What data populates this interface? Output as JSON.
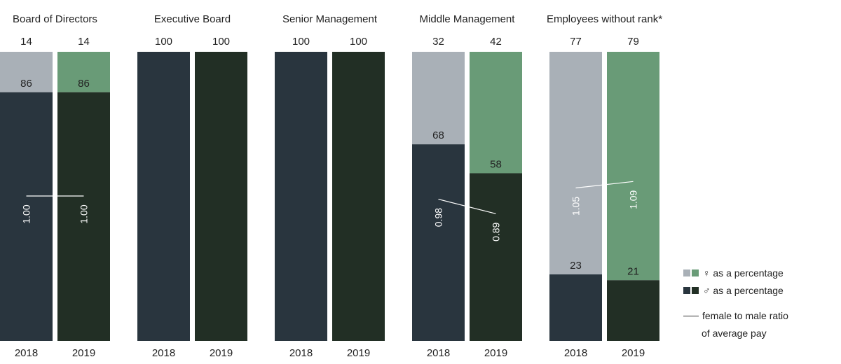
{
  "chart_data": {
    "type": "bar",
    "subtype": "stacked-100-percent",
    "groups": [
      {
        "name": "Board of Directors",
        "years": [
          {
            "year": "2018",
            "female": 14,
            "male": 86,
            "ratio": "1.00"
          },
          {
            "year": "2019",
            "female": 14,
            "male": 86,
            "ratio": "1.00"
          }
        ]
      },
      {
        "name": "Executive Board",
        "years": [
          {
            "year": "2018",
            "female": 0,
            "male": 100,
            "ratio": null
          },
          {
            "year": "2019",
            "female": 0,
            "male": 100,
            "ratio": null
          }
        ]
      },
      {
        "name": "Senior Management",
        "years": [
          {
            "year": "2018",
            "female": 0,
            "male": 100,
            "ratio": null
          },
          {
            "year": "2019",
            "female": 0,
            "male": 100,
            "ratio": null
          }
        ]
      },
      {
        "name": "Middle Management",
        "years": [
          {
            "year": "2018",
            "female": 32,
            "male": 68,
            "ratio": "0.98"
          },
          {
            "year": "2019",
            "female": 42,
            "male": 58,
            "ratio": "0.89"
          }
        ]
      },
      {
        "name": "Employees without rank*",
        "years": [
          {
            "year": "2018",
            "female": 77,
            "male": 23,
            "ratio": "1.05"
          },
          {
            "year": "2019",
            "female": 79,
            "male": 21,
            "ratio": "1.09"
          }
        ]
      }
    ],
    "ylim": [
      0,
      100
    ],
    "grid": false,
    "legend_position": "bottom-right",
    "colors": {
      "female_2018": "#a9b0b7",
      "male_2018": "#29353e",
      "female_2019": "#699b77",
      "male_2019": "#222f25",
      "ratio_line": "#ffffff"
    }
  },
  "legend": {
    "female_label": "♀ as a percentage",
    "male_label": "♂ as a percentage",
    "ratio_label_line1": "female to male ratio",
    "ratio_label_line2": "of average pay"
  }
}
